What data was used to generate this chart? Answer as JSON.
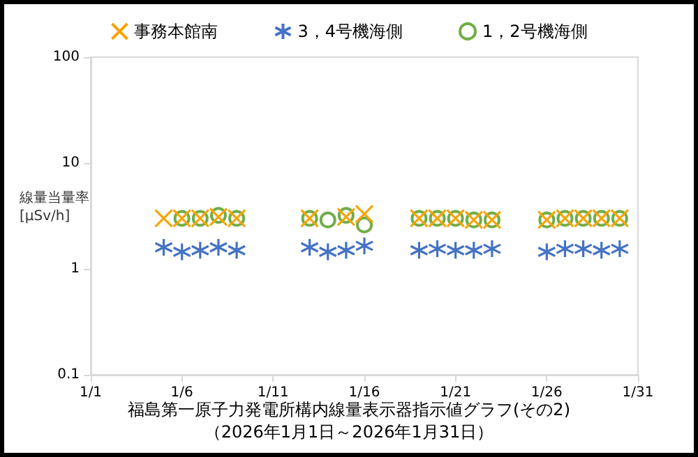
{
  "chart_data": {
    "type": "scatter",
    "title": "福島第一原子力発電所構内線量表示器指示値グラフ(その2)",
    "subtitle": "（2026年1月1日～2026年1月31日）",
    "ylabel": "線量当量率\n[μSv/h]",
    "x": [
      "2026-01-05",
      "2026-01-06",
      "2026-01-07",
      "2026-01-08",
      "2026-01-09",
      "2026-01-13",
      "2026-01-14",
      "2026-01-15",
      "2026-01-16",
      "2026-01-19",
      "2026-01-20",
      "2026-01-21",
      "2026-01-22",
      "2026-01-23",
      "2026-01-26",
      "2026-01-27",
      "2026-01-28",
      "2026-01-29",
      "2026-01-30"
    ],
    "series": [
      {
        "name": "事務本館南",
        "color": "#f5a50a",
        "marker": "cross",
        "values": [
          3.0,
          3.0,
          3.0,
          3.1,
          3.0,
          3.0,
          null,
          3.1,
          3.3,
          3.0,
          3.0,
          3.0,
          2.9,
          2.9,
          2.9,
          3.0,
          3.0,
          3.0,
          3.0
        ]
      },
      {
        "name": "3，4号機海側",
        "color": "#4472c4",
        "marker": "cross",
        "values": [
          1.6,
          1.45,
          1.5,
          1.6,
          1.5,
          1.6,
          1.45,
          1.5,
          1.65,
          1.5,
          1.55,
          1.5,
          1.5,
          1.55,
          1.45,
          1.55,
          1.55,
          1.5,
          1.55
        ]
      },
      {
        "name": "1，2号機海側",
        "color": "#70ad47",
        "marker": "circle",
        "values": [
          null,
          3.0,
          3.0,
          3.2,
          3.0,
          3.0,
          2.9,
          3.2,
          2.6,
          3.0,
          3.0,
          3.0,
          2.9,
          2.9,
          2.9,
          3.0,
          3.0,
          3.0,
          3.0
        ]
      }
    ],
    "xlim": [
      "2026-01-01",
      "2026-01-31"
    ],
    "xticks": [
      {
        "value": "2026-01-01",
        "label": "1/1"
      },
      {
        "value": "2026-01-06",
        "label": "1/6"
      },
      {
        "value": "2026-01-11",
        "label": "1/11"
      },
      {
        "value": "2026-01-16",
        "label": "1/16"
      },
      {
        "value": "2026-01-21",
        "label": "1/21"
      },
      {
        "value": "2026-01-26",
        "label": "1/26"
      },
      {
        "value": "2026-01-31",
        "label": "1/31"
      }
    ],
    "ylim": [
      0.1,
      100
    ],
    "yticks": [
      0.1,
      1,
      10,
      100
    ],
    "log": true,
    "grid": false,
    "legend": "top"
  }
}
